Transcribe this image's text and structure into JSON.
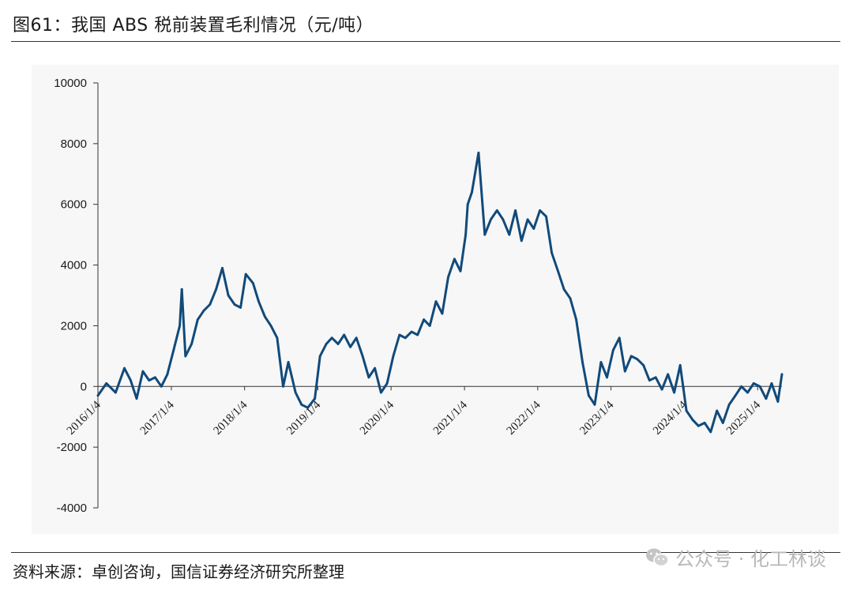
{
  "title": "图61：我国 ABS 税前装置毛利情况（元/吨）",
  "source": "资料来源：卓创咨询，国信证券经济研究所整理",
  "watermark": "公众号 · 化工林谈",
  "colors": {
    "series": "#114a7a",
    "axis": "#333333",
    "text": "#1a1a1a",
    "panel": "#f7f7f7"
  },
  "chart_data": {
    "type": "line",
    "title": "",
    "xlabel": "",
    "ylabel": "",
    "ylim": [
      -4000,
      10000
    ],
    "yticks": [
      -4000,
      -2000,
      0,
      2000,
      4000,
      6000,
      8000,
      10000
    ],
    "ytick_labels": [
      "-4000",
      "-2000",
      "0",
      "2000",
      "4000",
      "6000",
      "8000",
      "10000"
    ],
    "xticks": [
      "2016/1/4",
      "2017/1/4",
      "2018/1/4",
      "2019/1/4",
      "2020/1/4",
      "2021/1/4",
      "2022/1/4",
      "2023/1/4",
      "2024/1/4",
      "2025/1/4"
    ],
    "grid": false,
    "legend": "none",
    "series": [
      {
        "x": [
          "2016-01-04",
          "2016-02-15",
          "2016-04-01",
          "2016-05-15",
          "2016-06-15",
          "2016-07-15",
          "2016-08-15",
          "2016-09-15",
          "2016-10-15",
          "2016-11-15",
          "2016-12-15",
          "2017-01-15",
          "2017-02-15",
          "2017-02-25",
          "2017-03-15",
          "2017-04-15",
          "2017-05-15",
          "2017-06-15",
          "2017-07-15",
          "2017-08-15",
          "2017-09-15",
          "2017-10-15",
          "2017-11-15",
          "2017-12-15",
          "2018-01-10",
          "2018-02-15",
          "2018-03-15",
          "2018-04-15",
          "2018-05-15",
          "2018-06-15",
          "2018-07-15",
          "2018-08-10",
          "2018-09-15",
          "2018-10-15",
          "2018-11-15",
          "2018-12-20",
          "2019-01-15",
          "2019-02-15",
          "2019-03-15",
          "2019-04-15",
          "2019-05-15",
          "2019-06-15",
          "2019-07-15",
          "2019-08-15",
          "2019-09-15",
          "2019-10-15",
          "2019-11-15",
          "2019-12-15",
          "2020-01-15",
          "2020-02-15",
          "2020-03-15",
          "2020-04-15",
          "2020-05-15",
          "2020-06-15",
          "2020-07-15",
          "2020-08-15",
          "2020-09-15",
          "2020-10-15",
          "2020-11-15",
          "2020-12-15",
          "2021-01-10",
          "2021-01-20",
          "2021-02-10",
          "2021-03-15",
          "2021-04-15",
          "2021-05-15",
          "2021-06-15",
          "2021-07-15",
          "2021-08-15",
          "2021-09-15",
          "2021-10-15",
          "2021-11-15",
          "2021-12-15",
          "2022-01-15",
          "2022-02-15",
          "2022-03-15",
          "2022-04-15",
          "2022-05-15",
          "2022-06-15",
          "2022-07-15",
          "2022-08-15",
          "2022-09-15",
          "2022-10-15",
          "2022-11-15",
          "2022-12-15",
          "2023-01-15",
          "2023-02-15",
          "2023-03-15",
          "2023-04-15",
          "2023-05-15",
          "2023-06-15",
          "2023-07-15",
          "2023-08-15",
          "2023-09-15",
          "2023-10-15",
          "2023-11-15",
          "2023-12-15",
          "2024-01-15",
          "2024-02-15",
          "2024-03-15",
          "2024-04-15",
          "2024-05-15",
          "2024-06-15",
          "2024-07-15",
          "2024-08-15",
          "2024-09-15",
          "2024-10-15",
          "2024-11-15",
          "2024-12-15",
          "2025-01-15",
          "2025-02-15",
          "2025-03-15",
          "2025-04-15",
          "2025-05-05"
        ],
        "values": [
          -300,
          100,
          -200,
          600,
          200,
          -400,
          500,
          200,
          300,
          0,
          400,
          1200,
          2000,
          3200,
          1000,
          1400,
          2200,
          2500,
          2700,
          3200,
          3900,
          3000,
          2700,
          2600,
          3700,
          3400,
          2800,
          2300,
          2000,
          1600,
          0,
          800,
          -200,
          -600,
          -700,
          -400,
          1000,
          1400,
          1600,
          1400,
          1700,
          1300,
          1600,
          1000,
          300,
          600,
          -200,
          100,
          1000,
          1700,
          1600,
          1800,
          1700,
          2200,
          2000,
          2800,
          2400,
          3600,
          4200,
          3800,
          5000,
          6000,
          6400,
          7700,
          5000,
          5500,
          5800,
          5500,
          5000,
          5800,
          4800,
          5500,
          5200,
          5800,
          5600,
          4400,
          3800,
          3200,
          2900,
          2200,
          800,
          -300,
          -600,
          800,
          300,
          1200,
          1600,
          500,
          1000,
          900,
          700,
          200,
          300,
          -100,
          400,
          -200,
          700,
          -800,
          -1100,
          -1300,
          -1200,
          -1500,
          -800,
          -1200,
          -600,
          -300,
          0,
          -200,
          100,
          0,
          -400,
          100,
          -500,
          400
        ]
      }
    ]
  }
}
